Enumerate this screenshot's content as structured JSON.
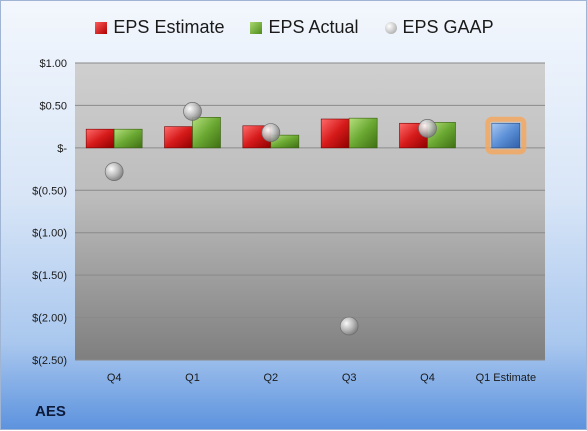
{
  "legend": [
    {
      "label": "EPS Estimate",
      "color": "#d01818"
    },
    {
      "label": "EPS Actual",
      "color": "#6aa832"
    },
    {
      "label": "EPS GAAP",
      "color": "#a8a8a8"
    }
  ],
  "company": "AES",
  "chart_data": {
    "type": "bar",
    "categories": [
      "Q4",
      "Q1",
      "Q2",
      "Q3",
      "Q4",
      "Q1 Estimate"
    ],
    "series": [
      {
        "name": "EPS Estimate",
        "type": "bar",
        "color": "#d01818",
        "values": [
          0.22,
          0.25,
          0.26,
          0.34,
          0.29,
          null
        ]
      },
      {
        "name": "EPS Actual",
        "type": "bar",
        "color": "#6aa832",
        "values": [
          0.22,
          0.36,
          0.15,
          0.35,
          0.3,
          null
        ]
      },
      {
        "name": "EPS GAAP",
        "type": "scatter",
        "color": "#a8a8a8",
        "values": [
          -0.28,
          0.43,
          0.18,
          -2.1,
          0.23,
          null
        ]
      },
      {
        "name": "Q1 Estimate",
        "type": "bar",
        "color": "#5b8fd6",
        "highlight": "#f5a860",
        "values": [
          null,
          null,
          null,
          null,
          null,
          0.29
        ]
      }
    ],
    "yticks": [
      1.0,
      0.5,
      0.0,
      -0.5,
      -1.0,
      -1.5,
      -2.0,
      -2.5
    ],
    "ytick_labels": [
      "$1.00",
      "$0.50",
      "$-",
      "$(0.50)",
      "$(1.00)",
      "$(1.50)",
      "$(2.00)",
      "$(2.50)"
    ],
    "ylim": [
      -2.5,
      1.0
    ],
    "grid": true,
    "legend_position": "top"
  }
}
